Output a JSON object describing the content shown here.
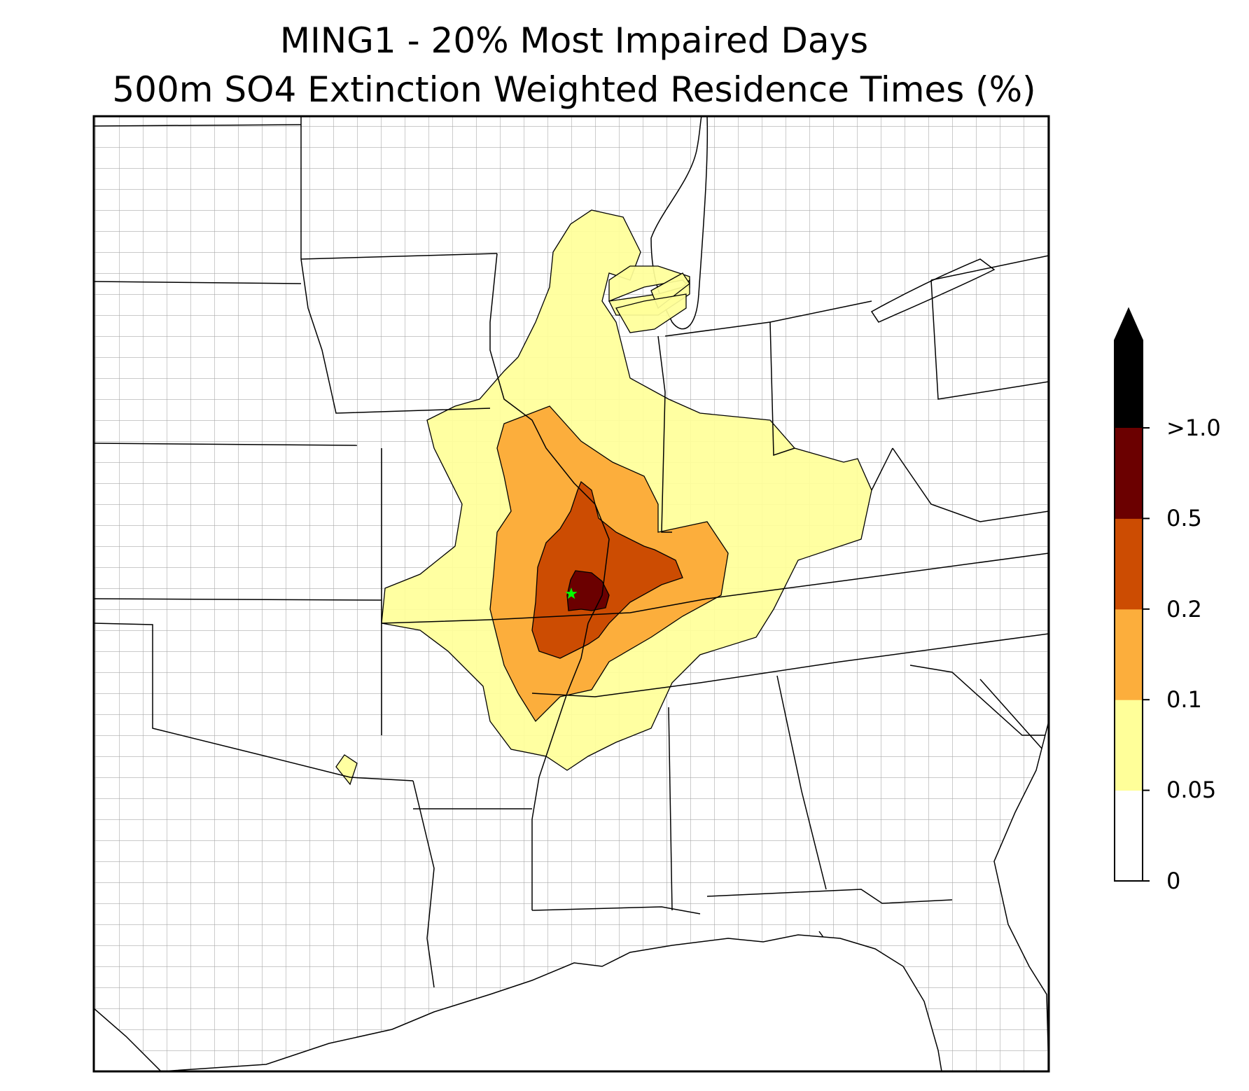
{
  "title": {
    "line1": "MING1 - 20% Most Impaired Days",
    "line2": "500m SO4 Extinction Weighted Residence Times (%)"
  },
  "map": {
    "region": "central and eastern United States",
    "site_marker": {
      "label": "",
      "color": "#00ff00",
      "symbol": "star"
    },
    "county_line_color": "#a0a0a0",
    "state_line_color": "#000000"
  },
  "colorbar": {
    "ticks": [
      "0",
      "0.05",
      "0.1",
      "0.2",
      "0.5",
      ">1.0"
    ],
    "bins": [
      {
        "from": "0",
        "to": "0.05",
        "color": "#ffffff"
      },
      {
        "from": "0.05",
        "to": "0.1",
        "color": "#ffff99"
      },
      {
        "from": "0.1",
        "to": "0.2",
        "color": "#fcae3c"
      },
      {
        "from": "0.2",
        "to": "0.5",
        "color": "#cc4c02"
      },
      {
        "from": "0.5",
        "to": "1.0",
        "color": "#6b0000"
      },
      {
        "from": "1.0",
        "to": "",
        "color": "#000000"
      }
    ],
    "extend": "max"
  }
}
